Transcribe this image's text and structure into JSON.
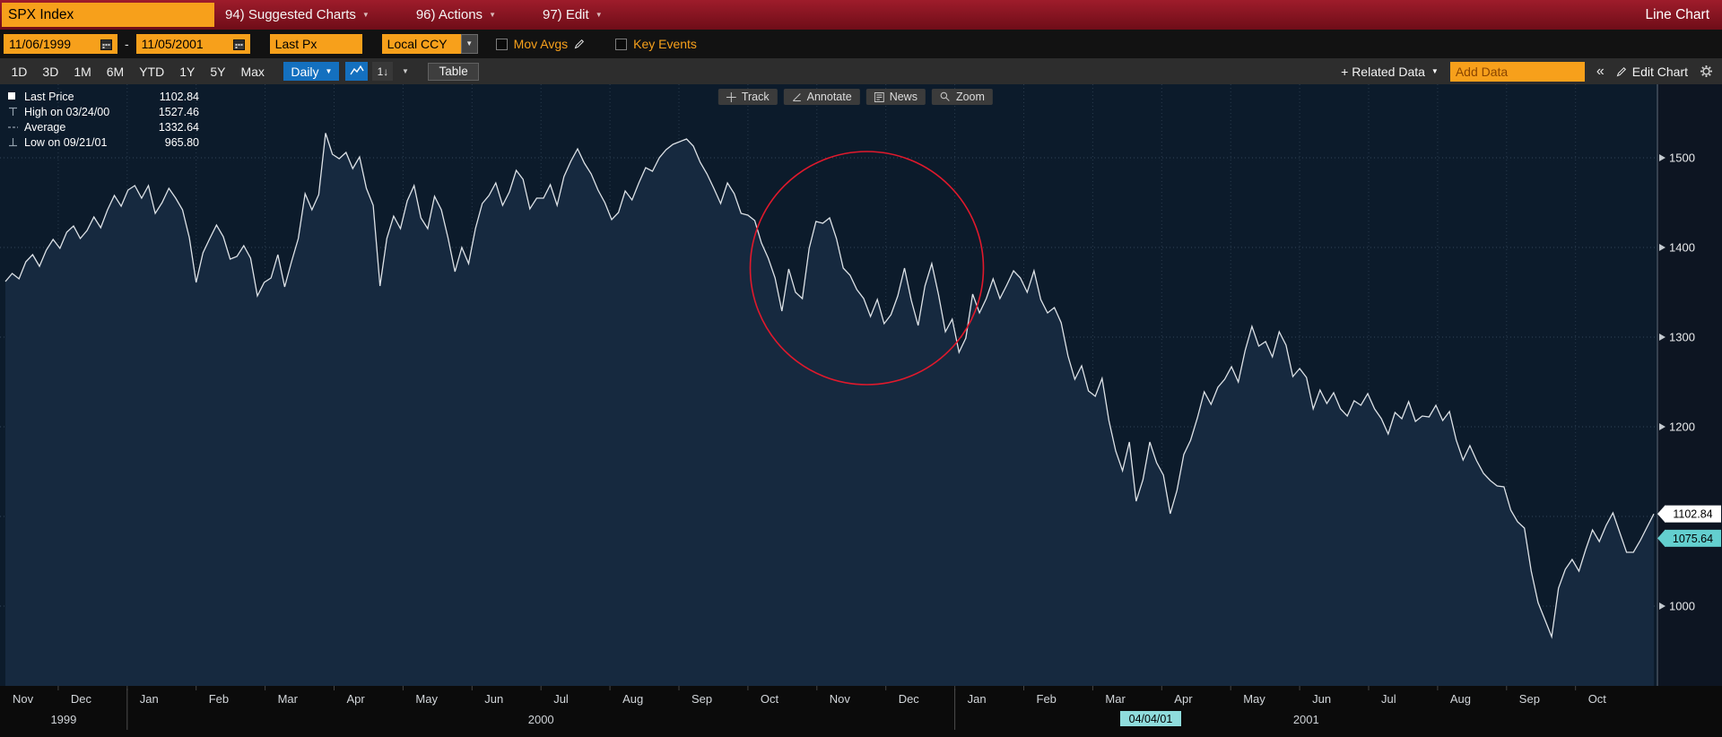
{
  "top_bar": {
    "security": "SPX Index",
    "menus": [
      {
        "key": "suggested-charts",
        "label": "94) Suggested Charts"
      },
      {
        "key": "actions",
        "label": "96) Actions"
      },
      {
        "key": "edit",
        "label": "97) Edit"
      }
    ],
    "right_label": "Line Chart"
  },
  "settings_bar": {
    "date_from": "11/06/1999",
    "range_separator": "-",
    "date_to": "11/05/2001",
    "field": "Last Px",
    "currency": "Local CCY",
    "mov_avgs_label": "Mov Avgs",
    "key_events_label": "Key Events"
  },
  "toolbar": {
    "periods": [
      "1D",
      "3D",
      "1M",
      "6M",
      "YTD",
      "1Y",
      "5Y",
      "Max"
    ],
    "frequency": "Daily",
    "one_axis_label": "1↓",
    "table_label": "Table",
    "related_data_label": "+ Related Data",
    "add_data_placeholder": "Add Data",
    "collapse_label": "«",
    "edit_chart_label": "Edit Chart"
  },
  "chart_tools": [
    {
      "key": "track",
      "label": "Track",
      "icon": "crosshair-icon"
    },
    {
      "key": "annotate",
      "label": "Annotate",
      "icon": "angle-icon"
    },
    {
      "key": "news",
      "label": "News",
      "icon": "news-icon"
    },
    {
      "key": "zoom",
      "label": "Zoom",
      "icon": "magnifier-icon"
    }
  ],
  "legend": [
    {
      "marker": "square",
      "label": "Last Price",
      "value": "1102.84"
    },
    {
      "marker": "high",
      "label": "High on 03/24/00",
      "value": "1527.46"
    },
    {
      "marker": "avg",
      "label": "Average",
      "value": "1332.64"
    },
    {
      "marker": "low",
      "label": "Low on 09/21/01",
      "value": "965.80"
    }
  ],
  "price_labels": [
    {
      "value": "1102.84",
      "value_num": 1102.84,
      "bg": "#ffffff"
    },
    {
      "value": "1075.64",
      "value_num": 1075.64,
      "bg": "#63cfcf"
    }
  ],
  "track_date": "04/04/01",
  "colors": {
    "amber": "#f7a01b",
    "blue": "#1470bf",
    "chart_bg": "#0c1b2b",
    "chart_fill": "#16293f",
    "chart_line": "#dde2e7",
    "annotation_red": "#e0192c",
    "cyan_label": "#63cfcf"
  },
  "chart_data": {
    "type": "area",
    "security": "SPX Index",
    "field": "Last Px",
    "frequency": "Daily",
    "date_range": [
      "11/06/1999",
      "11/05/2001"
    ],
    "last_price": 1102.84,
    "high": {
      "date": "03/24/00",
      "value": 1527.46
    },
    "average": 1332.64,
    "low": {
      "date": "09/21/01",
      "value": 965.8
    },
    "months": [
      "Nov",
      "Dec",
      "Jan",
      "Feb",
      "Mar",
      "Apr",
      "May",
      "Jun",
      "Jul",
      "Aug",
      "Sep",
      "Oct",
      "Nov",
      "Dec",
      "Jan",
      "Feb",
      "Mar",
      "Apr",
      "May",
      "Jun",
      "Jul",
      "Aug",
      "Sep",
      "Oct"
    ],
    "years": [
      {
        "label": "1999",
        "start": 0,
        "end": 2
      },
      {
        "label": "2000",
        "start": 2,
        "end": 14
      },
      {
        "label": "2001",
        "start": 14,
        "end": 24
      }
    ],
    "y_axis": {
      "ticks": [
        1500,
        1400,
        1300,
        1200,
        1100,
        1000
      ],
      "hidden_labels": [
        1100
      ]
    },
    "annotation": {
      "shape": "circle",
      "color": "#e0192c",
      "center_x_frac": 0.523,
      "center_price": 1377,
      "radius_px": 130
    },
    "prices": [
      1362,
      1371,
      1365,
      1384,
      1392,
      1379,
      1397,
      1409,
      1399,
      1417,
      1424,
      1410,
      1419,
      1434,
      1422,
      1442,
      1458,
      1446,
      1464,
      1469,
      1455,
      1469,
      1438,
      1450,
      1466,
      1455,
      1442,
      1411,
      1361,
      1394,
      1410,
      1425,
      1412,
      1387,
      1390,
      1402,
      1388,
      1346,
      1361,
      1366,
      1392,
      1356,
      1384,
      1410,
      1460,
      1442,
      1459,
      1527.46,
      1504,
      1499,
      1506,
      1488,
      1501,
      1466,
      1447,
      1357,
      1410,
      1435,
      1421,
      1452,
      1469,
      1433,
      1421,
      1457,
      1442,
      1410,
      1373,
      1400,
      1382,
      1421,
      1449,
      1458,
      1472,
      1447,
      1462,
      1486,
      1476,
      1443,
      1455,
      1455,
      1470,
      1447,
      1479,
      1496,
      1510,
      1494,
      1482,
      1464,
      1450,
      1431,
      1439,
      1463,
      1453,
      1472,
      1489,
      1485,
      1500,
      1509,
      1515,
      1518,
      1521,
      1513,
      1495,
      1482,
      1466,
      1449,
      1472,
      1460,
      1438,
      1436,
      1430,
      1405,
      1388,
      1366,
      1329,
      1376,
      1350,
      1343,
      1399,
      1429,
      1427,
      1433,
      1410,
      1377,
      1369,
      1353,
      1343,
      1323,
      1342,
      1315,
      1325,
      1346,
      1377,
      1341,
      1313,
      1357,
      1382,
      1347,
      1306,
      1320,
      1283,
      1299,
      1348,
      1327,
      1343,
      1365,
      1343,
      1358,
      1374,
      1366,
      1350,
      1374,
      1342,
      1327,
      1333,
      1316,
      1279,
      1253,
      1268,
      1240,
      1234,
      1254,
      1207,
      1173,
      1151,
      1183,
      1117,
      1141,
      1183,
      1160,
      1146,
      1103,
      1129,
      1169,
      1185,
      1210,
      1239,
      1225,
      1244,
      1253,
      1267,
      1250,
      1285,
      1312,
      1290,
      1295,
      1278,
      1306,
      1291,
      1256,
      1265,
      1255,
      1220,
      1241,
      1226,
      1238,
      1220,
      1212,
      1229,
      1224,
      1237,
      1220,
      1209,
      1192,
      1216,
      1209,
      1228,
      1206,
      1212,
      1211,
      1224,
      1207,
      1217,
      1185,
      1163,
      1179,
      1162,
      1148,
      1140,
      1134,
      1133,
      1107,
      1094,
      1087,
      1039,
      1004,
      985,
      965.8,
      1020,
      1041,
      1052,
      1039,
      1063,
      1085,
      1072,
      1090,
      1104,
      1082,
      1060,
      1060,
      1073,
      1088,
      1102.84
    ]
  }
}
